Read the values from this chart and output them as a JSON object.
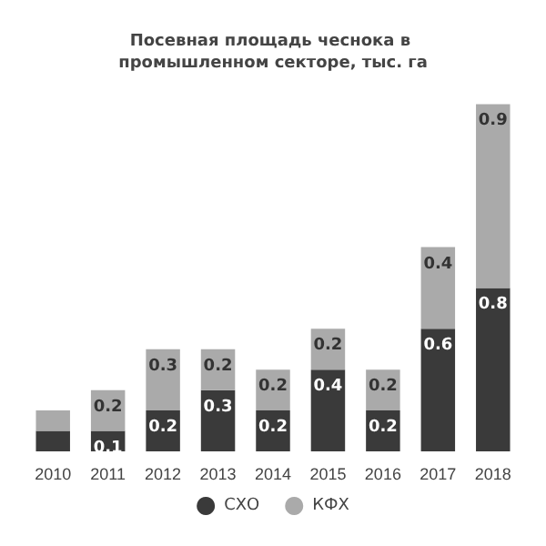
{
  "chart_data": {
    "type": "bar",
    "title": "Посевная площадь чеснока в промышленном секторе, тыс. га",
    "categories": [
      "2010",
      "2011",
      "2012",
      "2013",
      "2014",
      "2015",
      "2016",
      "2017",
      "2018"
    ],
    "stacked": true,
    "legend": "bottom",
    "series": [
      {
        "name": "СХО",
        "color": "#3a3a3a",
        "values": [
          0.1,
          0.1,
          0.2,
          0.3,
          0.2,
          0.4,
          0.2,
          0.6,
          0.8
        ],
        "value_labels": [
          null,
          "0.1",
          "0.2",
          "0.3",
          "0.2",
          "0.4",
          "0.2",
          "0.6",
          "0.8"
        ]
      },
      {
        "name": "КФХ",
        "color": "#aaaaaa",
        "values": [
          0.1,
          0.2,
          0.3,
          0.2,
          0.2,
          0.2,
          0.2,
          0.4,
          0.9
        ],
        "value_labels": [
          null,
          "0.2",
          "0.3",
          "0.2",
          "0.2",
          "0.2",
          "0.2",
          "0.4",
          "0.9"
        ]
      }
    ]
  }
}
